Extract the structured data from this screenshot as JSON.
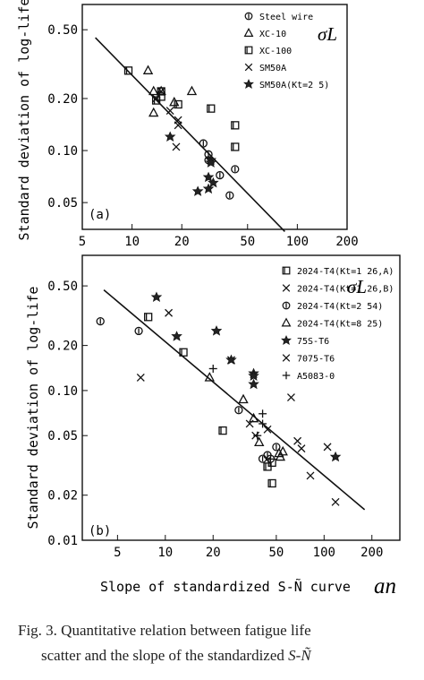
{
  "chart_data": [
    {
      "type": "scatter",
      "panel_label": "(a)",
      "ylabel": "Standard deviation of log-life",
      "symbol_label": "σL",
      "x_scale": "log",
      "y_scale": "log",
      "xlim": [
        5,
        200
      ],
      "ylim": [
        0.035,
        0.7
      ],
      "xticks": [
        "5",
        "10",
        "20",
        "50",
        "100",
        "200"
      ],
      "yticks": [
        "0.50",
        "0.20",
        "0.10",
        "0.05"
      ],
      "legend_position": "top-right",
      "series": [
        {
          "name": "Steel wire",
          "marker": "circle-bar",
          "points": [
            [
              29,
              0.095
            ],
            [
              29,
              0.088
            ],
            [
              34,
              0.072
            ],
            [
              27,
              0.11
            ],
            [
              42,
              0.078
            ],
            [
              39,
              0.055
            ]
          ]
        },
        {
          "name": "XC-10",
          "marker": "triangle",
          "points": [
            [
              12.5,
              0.29
            ],
            [
              13.5,
              0.22
            ],
            [
              15,
              0.22
            ],
            [
              23,
              0.22
            ],
            [
              13.5,
              0.165
            ],
            [
              18,
              0.19
            ]
          ]
        },
        {
          "name": "XC-100",
          "marker": "square-line",
          "points": [
            [
              9.5,
              0.29
            ],
            [
              15,
              0.22
            ],
            [
              15,
              0.205
            ],
            [
              30,
              0.175
            ],
            [
              42,
              0.14
            ],
            [
              42,
              0.105
            ],
            [
              19,
              0.185
            ],
            [
              14,
              0.195
            ]
          ]
        },
        {
          "name": "SM50A",
          "marker": "x",
          "points": [
            [
              14,
              0.2
            ],
            [
              17,
              0.17
            ],
            [
              19,
              0.15
            ],
            [
              18.5,
              0.105
            ],
            [
              19,
              0.14
            ],
            [
              15,
              0.22
            ]
          ]
        },
        {
          "name": "SM50A(Kt=2 5)",
          "marker": "star",
          "points": [
            [
              17,
              0.12
            ],
            [
              25,
              0.058
            ],
            [
              29,
              0.07
            ],
            [
              29,
              0.06
            ],
            [
              30,
              0.088
            ],
            [
              31,
              0.065
            ],
            [
              30,
              0.085
            ]
          ]
        }
      ],
      "fit_line": {
        "x": [
          6,
          84
        ],
        "y": [
          0.45,
          0.034
        ]
      }
    },
    {
      "type": "scatter",
      "panel_label": "(b)",
      "ylabel": "Standard deviation of log-life",
      "symbol_label": "σL",
      "xlabel": "Slope of standardized S-Ñ curve",
      "x_symbol": "an",
      "x_scale": "log",
      "y_scale": "log",
      "xlim": [
        3,
        300
      ],
      "ylim": [
        0.01,
        0.8
      ],
      "xticks": [
        "5",
        "10",
        "20",
        "50",
        "100",
        "200"
      ],
      "yticks": [
        "0.50",
        "0.20",
        "0.10",
        "0.05",
        "0.02",
        "0.01"
      ],
      "legend_position": "top-right",
      "series": [
        {
          "name": "2024-T4(Kt=1 26,A)",
          "marker": "square-line",
          "points": [
            [
              7.8,
              0.31
            ],
            [
              13,
              0.18
            ],
            [
              23,
              0.054
            ],
            [
              47,
              0.033
            ],
            [
              44,
              0.031
            ],
            [
              47,
              0.024
            ]
          ]
        },
        {
          "name": "2024-T4(Kt=1 26,B)",
          "marker": "x",
          "points": [
            [
              10.5,
              0.33
            ],
            [
              26,
              0.16
            ],
            [
              34,
              0.06
            ],
            [
              44,
              0.055
            ],
            [
              37,
              0.05
            ],
            [
              62,
              0.09
            ]
          ]
        },
        {
          "name": "2024-T4(Kt=2 54)",
          "marker": "circle-bar",
          "points": [
            [
              3.9,
              0.29
            ],
            [
              6.8,
              0.25
            ],
            [
              29,
              0.074
            ],
            [
              44,
              0.037
            ],
            [
              50,
              0.042
            ],
            [
              41,
              0.035
            ],
            [
              46,
              0.035
            ]
          ]
        },
        {
          "name": "2024-T4(Kt=8 25)",
          "marker": "triangle",
          "points": [
            [
              31,
              0.087
            ],
            [
              19,
              0.122
            ],
            [
              36,
              0.065
            ],
            [
              39,
              0.045
            ],
            [
              53,
              0.036
            ],
            [
              52,
              0.038
            ],
            [
              55,
              0.039
            ]
          ]
        },
        {
          "name": "75S-T6",
          "marker": "star",
          "points": [
            [
              8.8,
              0.42
            ],
            [
              11.8,
              0.23
            ],
            [
              21,
              0.25
            ],
            [
              36,
              0.13
            ],
            [
              36,
              0.125
            ],
            [
              36,
              0.11
            ],
            [
              26,
              0.16
            ],
            [
              118,
              0.036
            ]
          ]
        },
        {
          "name": "7075-T6",
          "marker": "x",
          "points": [
            [
              7,
              0.122
            ],
            [
              68,
              0.046
            ],
            [
              72,
              0.041
            ],
            [
              82,
              0.027
            ],
            [
              105,
              0.042
            ],
            [
              118,
              0.018
            ]
          ]
        },
        {
          "name": "A5083-0",
          "marker": "plus",
          "points": [
            [
              20,
              0.14
            ],
            [
              41,
              0.07
            ],
            [
              41,
              0.06
            ],
            [
              38,
              0.05
            ]
          ]
        }
      ],
      "fit_line": {
        "x": [
          4.1,
          180
        ],
        "y": [
          0.47,
          0.016
        ]
      }
    }
  ],
  "caption": {
    "line1": "Fig.  3.   Quantitative relation between fatigue life",
    "line2_prefix": "scatter and the slope of the standardized ",
    "line2_symbol": "S-Ñ"
  }
}
